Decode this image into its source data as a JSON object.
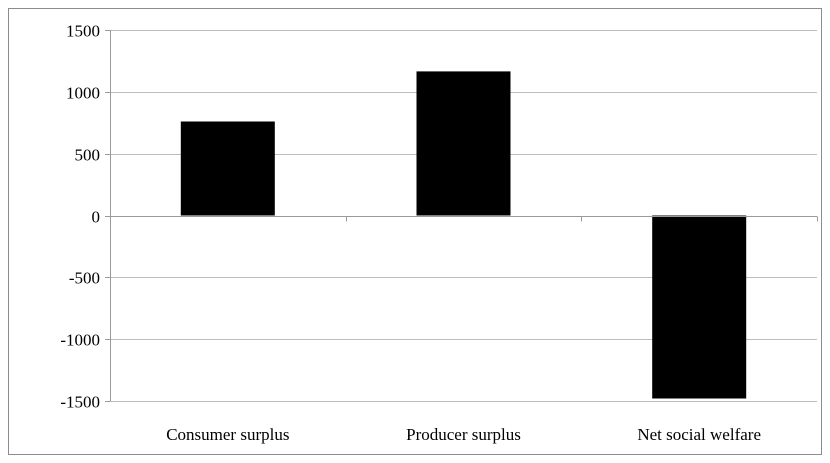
{
  "chart_data": {
    "type": "bar",
    "categories": [
      "Consumer surplus",
      "Producer surplus",
      "Net social welfare"
    ],
    "values": [
      760,
      1165,
      -1480
    ],
    "ylim": [
      -1500,
      1500
    ],
    "yticks": [
      1500,
      1000,
      500,
      0,
      -500,
      -1000,
      -1500
    ],
    "ytick_labels": [
      "1500",
      "1000",
      "500",
      "0",
      "-500",
      "-1000",
      "-1500"
    ],
    "title": "",
    "xlabel": "",
    "ylabel": "",
    "grid": true,
    "legend": "none",
    "bar_color": "#000000"
  }
}
